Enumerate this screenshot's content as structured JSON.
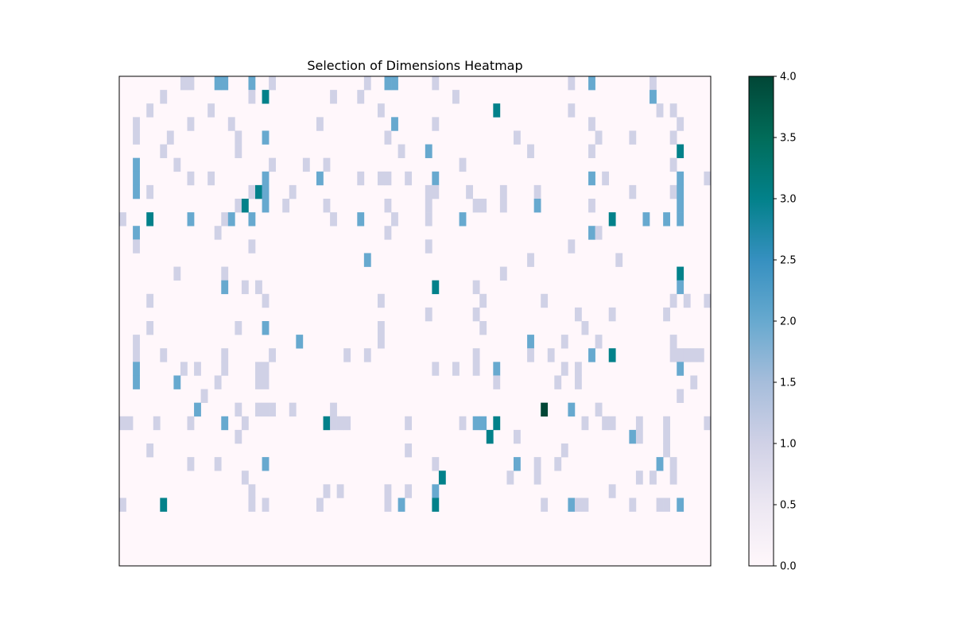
{
  "chart_data": {
    "type": "heatmap",
    "title": "Selection of Dimensions Heatmap",
    "xlabel": "",
    "ylabel": "",
    "colormap": "PuBuGn",
    "color_stops": [
      "#fff7fb",
      "#ece7f2",
      "#d0d1e6",
      "#a6bddb",
      "#67a9cf",
      "#3690c0",
      "#02818a",
      "#016c59",
      "#014636"
    ],
    "vmin": 0,
    "vmax": 4,
    "colorbar_ticks": [
      "0.0",
      "0.5",
      "1.0",
      "1.5",
      "2.0",
      "2.5",
      "3.0",
      "3.5",
      "4.0"
    ],
    "n_rows": 36,
    "n_cols": 87,
    "grid": false,
    "axes_ticks": false,
    "cells": [
      [
        0,
        9,
        1
      ],
      [
        0,
        10,
        1
      ],
      [
        0,
        14,
        2
      ],
      [
        0,
        15,
        2
      ],
      [
        0,
        19,
        2
      ],
      [
        0,
        22,
        1
      ],
      [
        0,
        36,
        1
      ],
      [
        0,
        39,
        2
      ],
      [
        0,
        40,
        2
      ],
      [
        0,
        46,
        1
      ],
      [
        0,
        66,
        1
      ],
      [
        0,
        69,
        2
      ],
      [
        0,
        78,
        1
      ],
      [
        1,
        6,
        1
      ],
      [
        1,
        19,
        1
      ],
      [
        1,
        21,
        3
      ],
      [
        1,
        31,
        1
      ],
      [
        1,
        35,
        1
      ],
      [
        1,
        49,
        1
      ],
      [
        1,
        78,
        2
      ],
      [
        2,
        4,
        1
      ],
      [
        2,
        13,
        1
      ],
      [
        2,
        38,
        1
      ],
      [
        2,
        55,
        3
      ],
      [
        2,
        66,
        1
      ],
      [
        2,
        79,
        1
      ],
      [
        2,
        81,
        1
      ],
      [
        3,
        2,
        1
      ],
      [
        3,
        10,
        1
      ],
      [
        3,
        16,
        1
      ],
      [
        3,
        29,
        1
      ],
      [
        3,
        40,
        2
      ],
      [
        3,
        46,
        1
      ],
      [
        3,
        69,
        1
      ],
      [
        3,
        82,
        1
      ],
      [
        4,
        2,
        1
      ],
      [
        4,
        7,
        1
      ],
      [
        4,
        17,
        1
      ],
      [
        4,
        21,
        2
      ],
      [
        4,
        39,
        1
      ],
      [
        4,
        58,
        1
      ],
      [
        4,
        70,
        1
      ],
      [
        4,
        75,
        1
      ],
      [
        4,
        81,
        1
      ],
      [
        5,
        6,
        1
      ],
      [
        5,
        17,
        1
      ],
      [
        5,
        41,
        1
      ],
      [
        5,
        45,
        2
      ],
      [
        5,
        60,
        1
      ],
      [
        5,
        69,
        1
      ],
      [
        5,
        82,
        3
      ],
      [
        6,
        2,
        2
      ],
      [
        6,
        8,
        1
      ],
      [
        6,
        22,
        1
      ],
      [
        6,
        27,
        1
      ],
      [
        6,
        30,
        1
      ],
      [
        6,
        50,
        1
      ],
      [
        6,
        81,
        1
      ],
      [
        7,
        2,
        2
      ],
      [
        7,
        10,
        1
      ],
      [
        7,
        13,
        1
      ],
      [
        7,
        21,
        2
      ],
      [
        7,
        29,
        2
      ],
      [
        7,
        35,
        1
      ],
      [
        7,
        38,
        1
      ],
      [
        7,
        39,
        1
      ],
      [
        7,
        42,
        1
      ],
      [
        7,
        46,
        2
      ],
      [
        7,
        69,
        2
      ],
      [
        7,
        71,
        1
      ],
      [
        7,
        82,
        2
      ],
      [
        7,
        86,
        1
      ],
      [
        8,
        2,
        2
      ],
      [
        8,
        4,
        1
      ],
      [
        8,
        19,
        1
      ],
      [
        8,
        20,
        3
      ],
      [
        8,
        21,
        2
      ],
      [
        8,
        25,
        1
      ],
      [
        8,
        45,
        1
      ],
      [
        8,
        46,
        1
      ],
      [
        8,
        51,
        1
      ],
      [
        8,
        56,
        1
      ],
      [
        8,
        61,
        1
      ],
      [
        8,
        75,
        1
      ],
      [
        8,
        81,
        1
      ],
      [
        8,
        82,
        2
      ],
      [
        9,
        17,
        1
      ],
      [
        9,
        18,
        3
      ],
      [
        9,
        21,
        2
      ],
      [
        9,
        24,
        1
      ],
      [
        9,
        30,
        1
      ],
      [
        9,
        39,
        1
      ],
      [
        9,
        45,
        1
      ],
      [
        9,
        52,
        1
      ],
      [
        9,
        53,
        1
      ],
      [
        9,
        56,
        1
      ],
      [
        9,
        61,
        2
      ],
      [
        9,
        69,
        1
      ],
      [
        9,
        82,
        2
      ],
      [
        10,
        0,
        1
      ],
      [
        10,
        4,
        3
      ],
      [
        10,
        10,
        2
      ],
      [
        10,
        15,
        1
      ],
      [
        10,
        16,
        2
      ],
      [
        10,
        19,
        2
      ],
      [
        10,
        31,
        1
      ],
      [
        10,
        35,
        2
      ],
      [
        10,
        40,
        1
      ],
      [
        10,
        45,
        1
      ],
      [
        10,
        50,
        2
      ],
      [
        10,
        72,
        3
      ],
      [
        10,
        77,
        2
      ],
      [
        10,
        80,
        2
      ],
      [
        10,
        82,
        2
      ],
      [
        11,
        2,
        2
      ],
      [
        11,
        14,
        1
      ],
      [
        11,
        39,
        1
      ],
      [
        11,
        69,
        2
      ],
      [
        11,
        70,
        1
      ],
      [
        12,
        2,
        1
      ],
      [
        12,
        19,
        1
      ],
      [
        12,
        45,
        1
      ],
      [
        12,
        66,
        1
      ],
      [
        13,
        36,
        2
      ],
      [
        13,
        60,
        1
      ],
      [
        13,
        73,
        1
      ],
      [
        14,
        8,
        1
      ],
      [
        14,
        15,
        1
      ],
      [
        14,
        56,
        1
      ],
      [
        14,
        82,
        3
      ],
      [
        15,
        15,
        2
      ],
      [
        15,
        18,
        1
      ],
      [
        15,
        20,
        1
      ],
      [
        15,
        46,
        3
      ],
      [
        15,
        52,
        1
      ],
      [
        15,
        82,
        2
      ],
      [
        16,
        4,
        1
      ],
      [
        16,
        21,
        1
      ],
      [
        16,
        38,
        1
      ],
      [
        16,
        53,
        1
      ],
      [
        16,
        62,
        1
      ],
      [
        16,
        81,
        1
      ],
      [
        16,
        83,
        1
      ],
      [
        16,
        86,
        1
      ],
      [
        17,
        45,
        1
      ],
      [
        17,
        52,
        1
      ],
      [
        17,
        67,
        1
      ],
      [
        17,
        72,
        1
      ],
      [
        17,
        80,
        1
      ],
      [
        18,
        4,
        1
      ],
      [
        18,
        17,
        1
      ],
      [
        18,
        21,
        2
      ],
      [
        18,
        38,
        1
      ],
      [
        18,
        53,
        1
      ],
      [
        18,
        68,
        1
      ],
      [
        19,
        2,
        1
      ],
      [
        19,
        26,
        2
      ],
      [
        19,
        38,
        1
      ],
      [
        19,
        60,
        2
      ],
      [
        19,
        65,
        1
      ],
      [
        19,
        70,
        1
      ],
      [
        19,
        81,
        1
      ],
      [
        20,
        2,
        1
      ],
      [
        20,
        6,
        1
      ],
      [
        20,
        15,
        1
      ],
      [
        20,
        22,
        1
      ],
      [
        20,
        33,
        1
      ],
      [
        20,
        36,
        1
      ],
      [
        20,
        52,
        1
      ],
      [
        20,
        60,
        1
      ],
      [
        20,
        63,
        1
      ],
      [
        20,
        69,
        2
      ],
      [
        20,
        72,
        3
      ],
      [
        20,
        81,
        1
      ],
      [
        20,
        82,
        1
      ],
      [
        20,
        83,
        1
      ],
      [
        20,
        84,
        1
      ],
      [
        20,
        85,
        1
      ],
      [
        21,
        2,
        2
      ],
      [
        21,
        9,
        1
      ],
      [
        21,
        11,
        1
      ],
      [
        21,
        15,
        1
      ],
      [
        21,
        20,
        1
      ],
      [
        21,
        21,
        1
      ],
      [
        21,
        46,
        1
      ],
      [
        21,
        49,
        1
      ],
      [
        21,
        52,
        1
      ],
      [
        21,
        55,
        2
      ],
      [
        21,
        65,
        1
      ],
      [
        21,
        67,
        1
      ],
      [
        21,
        82,
        2
      ],
      [
        22,
        2,
        2
      ],
      [
        22,
        8,
        2
      ],
      [
        22,
        14,
        1
      ],
      [
        22,
        20,
        1
      ],
      [
        22,
        21,
        1
      ],
      [
        22,
        55,
        1
      ],
      [
        22,
        64,
        1
      ],
      [
        22,
        67,
        1
      ],
      [
        22,
        84,
        1
      ],
      [
        23,
        12,
        1
      ],
      [
        23,
        82,
        1
      ],
      [
        24,
        11,
        2
      ],
      [
        24,
        17,
        1
      ],
      [
        24,
        20,
        1
      ],
      [
        24,
        21,
        1
      ],
      [
        24,
        22,
        1
      ],
      [
        24,
        25,
        1
      ],
      [
        24,
        31,
        1
      ],
      [
        24,
        62,
        4
      ],
      [
        24,
        66,
        2
      ],
      [
        24,
        70,
        1
      ],
      [
        25,
        0,
        1
      ],
      [
        25,
        1,
        1
      ],
      [
        25,
        5,
        1
      ],
      [
        25,
        10,
        1
      ],
      [
        25,
        15,
        2
      ],
      [
        25,
        18,
        1
      ],
      [
        25,
        30,
        3
      ],
      [
        25,
        31,
        1
      ],
      [
        25,
        32,
        1
      ],
      [
        25,
        33,
        1
      ],
      [
        25,
        42,
        1
      ],
      [
        25,
        50,
        1
      ],
      [
        25,
        52,
        2
      ],
      [
        25,
        53,
        2
      ],
      [
        25,
        55,
        3
      ],
      [
        25,
        68,
        1
      ],
      [
        25,
        71,
        1
      ],
      [
        25,
        72,
        1
      ],
      [
        25,
        76,
        1
      ],
      [
        25,
        80,
        1
      ],
      [
        25,
        86,
        1
      ],
      [
        26,
        17,
        1
      ],
      [
        26,
        54,
        3
      ],
      [
        26,
        58,
        1
      ],
      [
        26,
        75,
        2
      ],
      [
        26,
        76,
        1
      ],
      [
        26,
        80,
        1
      ],
      [
        27,
        4,
        1
      ],
      [
        27,
        42,
        1
      ],
      [
        27,
        65,
        1
      ],
      [
        27,
        80,
        1
      ],
      [
        28,
        10,
        1
      ],
      [
        28,
        14,
        1
      ],
      [
        28,
        21,
        2
      ],
      [
        28,
        46,
        1
      ],
      [
        28,
        58,
        2
      ],
      [
        28,
        61,
        1
      ],
      [
        28,
        64,
        1
      ],
      [
        28,
        79,
        2
      ],
      [
        28,
        81,
        1
      ],
      [
        29,
        18,
        1
      ],
      [
        29,
        47,
        3
      ],
      [
        29,
        57,
        1
      ],
      [
        29,
        61,
        1
      ],
      [
        29,
        76,
        1
      ],
      [
        29,
        78,
        1
      ],
      [
        29,
        81,
        1
      ],
      [
        30,
        19,
        1
      ],
      [
        30,
        30,
        1
      ],
      [
        30,
        32,
        1
      ],
      [
        30,
        39,
        1
      ],
      [
        30,
        42,
        1
      ],
      [
        30,
        46,
        2
      ],
      [
        30,
        72,
        1
      ],
      [
        31,
        0,
        1
      ],
      [
        31,
        6,
        3
      ],
      [
        31,
        19,
        1
      ],
      [
        31,
        21,
        1
      ],
      [
        31,
        29,
        1
      ],
      [
        31,
        39,
        1
      ],
      [
        31,
        41,
        2
      ],
      [
        31,
        46,
        3
      ],
      [
        31,
        62,
        1
      ],
      [
        31,
        66,
        2
      ],
      [
        31,
        67,
        1
      ],
      [
        31,
        68,
        1
      ],
      [
        31,
        75,
        1
      ],
      [
        31,
        79,
        1
      ],
      [
        31,
        80,
        1
      ],
      [
        31,
        82,
        2
      ]
    ]
  }
}
